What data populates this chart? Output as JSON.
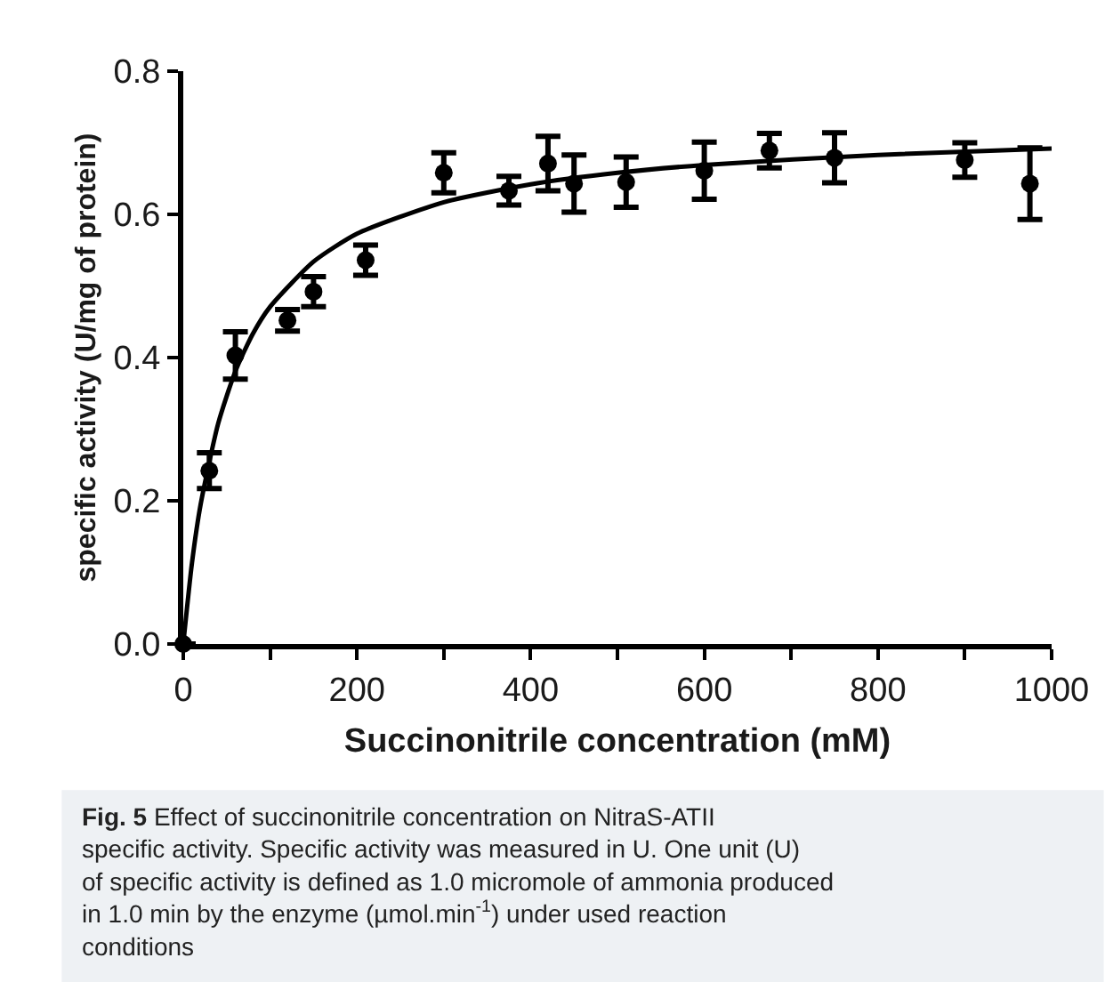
{
  "chart_data": {
    "type": "scatter",
    "xlabel": "Succinonitrile concentration (mM)",
    "ylabel": "specific activity (U/mg of protein)",
    "xlim": [
      0,
      1000
    ],
    "xticks": [
      0,
      {
        "value": 100,
        "label": null
      },
      200,
      {
        "value": 300,
        "label": null
      },
      400,
      {
        "value": 500,
        "label": null
      },
      600,
      {
        "value": 700,
        "label": null
      },
      800,
      {
        "value": 900,
        "label": null
      },
      1000
    ],
    "ylim": [
      0,
      0.8
    ],
    "yticks": [
      {
        "value": 0,
        "label": "0.0"
      },
      0.2,
      0.4,
      0.6,
      0.8
    ],
    "marker": "circle",
    "series": [
      {
        "color": "#000000",
        "x": [
          0,
          30,
          60,
          120,
          150,
          210,
          300,
          375,
          420,
          450,
          510,
          600,
          675,
          750,
          900,
          975
        ],
        "values": [
          0,
          0.242,
          0.403,
          0.452,
          0.492,
          0.536,
          0.658,
          0.633,
          0.671,
          0.643,
          0.645,
          0.661,
          0.689,
          0.679,
          0.676,
          0.643
        ],
        "errors": [
          null,
          0.025,
          0.033,
          0.015,
          0.021,
          0.021,
          0.028,
          0.02,
          0.038,
          0.04,
          0.035,
          0.04,
          0.024,
          0.035,
          0.024,
          0.05
        ]
      },
      {
        "type": "line",
        "color": "#000000",
        "marker": "none",
        "line_style": "solid",
        "x": [
          0,
          10,
          20,
          40,
          60,
          80,
          100,
          150,
          200,
          300,
          400,
          500,
          600,
          800,
          1000
        ],
        "values": [
          0,
          0.113,
          0.195,
          0.307,
          0.381,
          0.433,
          0.471,
          0.534,
          0.573,
          0.617,
          0.642,
          0.658,
          0.669,
          0.683,
          0.692
        ]
      }
    ],
    "annotations": [
      "Fig. 5 Effect of succinonitrile concentration on NitraS-ATII specific activity. Specific activity was measured in U. One unit (U) of specific activity is defined as 1.0 micromole of ammonia produced in 1.0 min by the enzyme (µmol.min$^{-1}$) under used reaction conditions"
    ]
  }
}
